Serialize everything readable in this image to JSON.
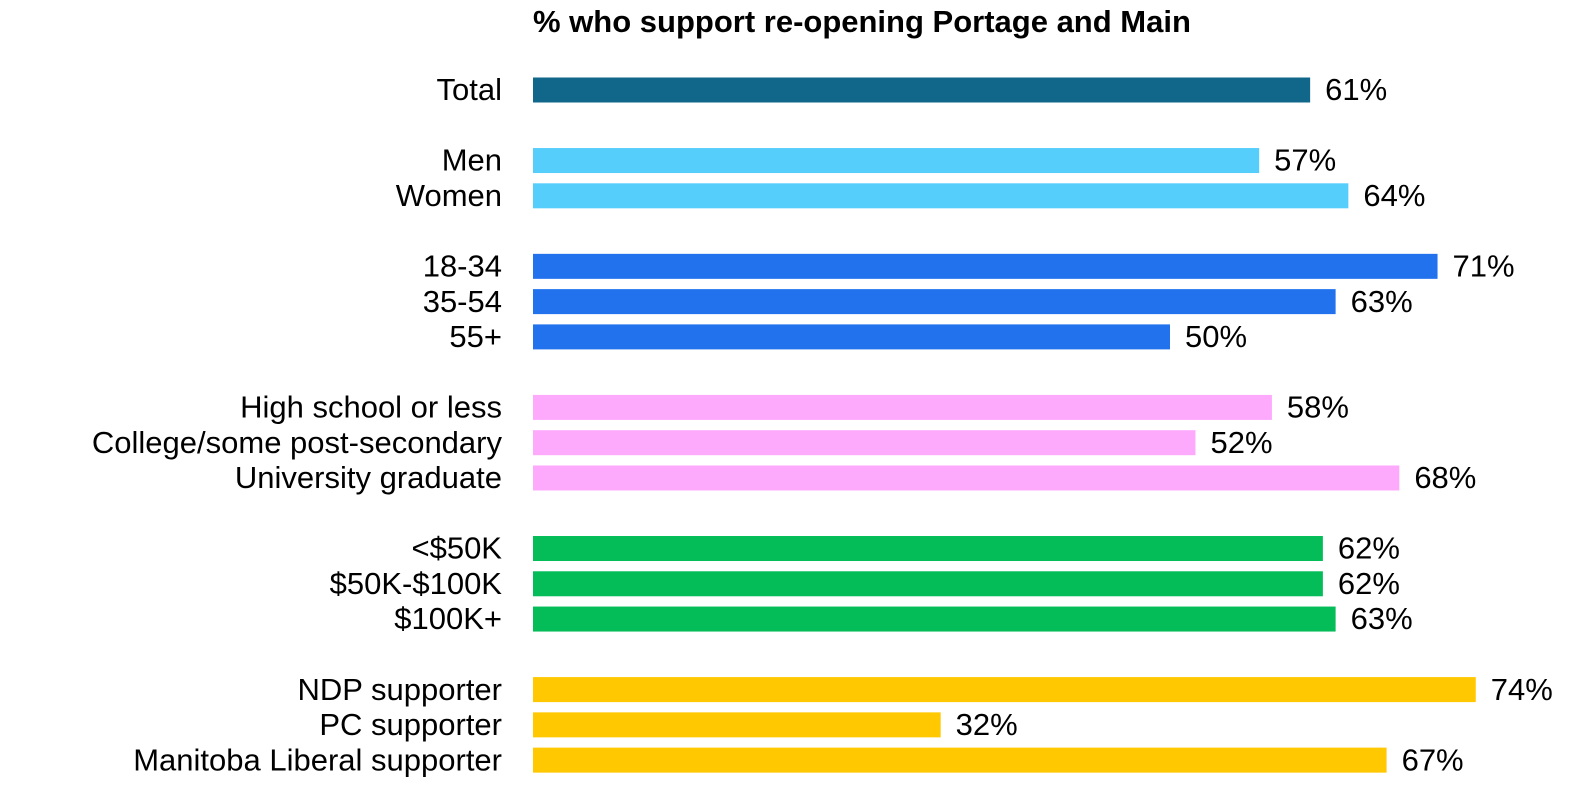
{
  "chart_data": {
    "type": "barh",
    "title": "% who support re-opening Portage and Main",
    "categories": [
      "Total",
      "Men",
      "Women",
      "18-34",
      "35-54",
      "55+",
      "High school or less",
      "College/some post-secondary",
      "University graduate",
      "<$50K",
      "$50K-$100K",
      "$100K+",
      "NDP supporter",
      "PC supporter",
      "Manitoba Liberal supporter"
    ],
    "values": [
      61,
      57,
      64,
      71,
      63,
      50,
      58,
      52,
      68,
      62,
      62,
      63,
      74,
      32,
      67
    ],
    "value_labels": [
      "61%",
      "57%",
      "64%",
      "71%",
      "63%",
      "50%",
      "58%",
      "52%",
      "68%",
      "62%",
      "62%",
      "63%",
      "74%",
      "32%",
      "67%"
    ],
    "colors": [
      "#10678a",
      "#55cefc",
      "#55cefc",
      "#2272ee",
      "#2272ee",
      "#2272ee",
      "#fdaafd",
      "#fdaafd",
      "#fdaafd",
      "#05bd58",
      "#05bd58",
      "#05bd58",
      "#ffc800",
      "#ffc800",
      "#ffc800"
    ]
  }
}
